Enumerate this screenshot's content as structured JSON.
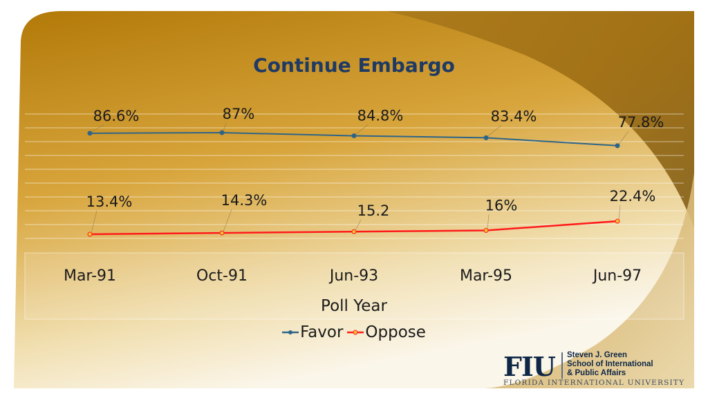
{
  "chart_data": {
    "type": "line",
    "title": "Continue Embargo",
    "xlabel": "Poll Year",
    "categories": [
      "Mar-91",
      "Oct-91",
      "Jun-93",
      "Mar-95",
      "Jun-97"
    ],
    "ylim": [
      0,
      100
    ],
    "grid": true,
    "legend_position": "bottom",
    "series": [
      {
        "name": "Favor",
        "color": "#2e6488",
        "values": [
          86.6,
          87,
          84.8,
          83.4,
          77.8
        ],
        "labels": [
          "86.6%",
          "87%",
          "84.8%",
          "83.4%",
          "77.8%"
        ]
      },
      {
        "name": "Oppose",
        "color": "#ff1a1a",
        "values": [
          13.4,
          14.3,
          15.2,
          16,
          22.4
        ],
        "labels": [
          "13.4%",
          "14.3%",
          "15.2",
          "16%",
          "22.4%"
        ]
      }
    ]
  },
  "logo": {
    "mark": "FIU",
    "school_line1": "Steven J. Green",
    "school_line2": "School of International",
    "school_line3": "& Public Affairs",
    "university": "FLORIDA INTERNATIONAL UNIVERSITY"
  }
}
